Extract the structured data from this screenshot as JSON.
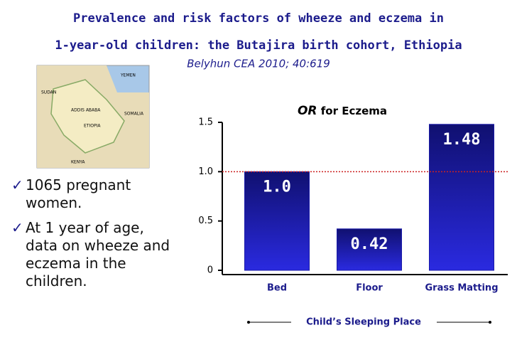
{
  "header": {
    "title_line1": "Prevalence and risk factors of wheeze and eczema in",
    "title_line2": "1-year-old children: the Butajira birth cohort, Ethiopia",
    "citation": "Belyhun CEA  2010; 40:619"
  },
  "map": {
    "labels": [
      "YEMEN",
      "SUDAN",
      "ETIOPIA",
      "SOMALIA",
      "KENYA",
      "ADDIS ABABA"
    ]
  },
  "bullets": [
    "1065 pregnant women.",
    "At 1 year of age, data on wheeze and eczema in the children."
  ],
  "chart_data": {
    "type": "bar",
    "title_emphasis": "OR",
    "title": "for Eczema",
    "categories": [
      "Bed",
      "Floor",
      "Grass Matting"
    ],
    "values": [
      1,
      0.42,
      1.48
    ],
    "value_labels": [
      "1.0",
      "0.42",
      "1.48"
    ],
    "color": "#1a1aa8",
    "reference_line": 1,
    "reference_color": "#cc2222",
    "ylim": [
      0,
      1.5
    ],
    "yticks": [
      0,
      0.5,
      {
        "value": 1,
        "label": "1.0"
      },
      1.5
    ],
    "xlabel": "Child’s Sleeping Place"
  }
}
